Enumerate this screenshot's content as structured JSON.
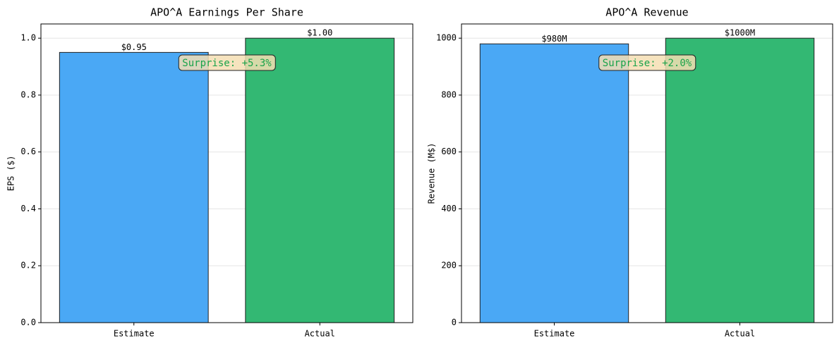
{
  "chart_data": [
    {
      "type": "bar",
      "title": "APO^A Earnings Per Share",
      "ylabel": "EPS ($)",
      "categories": [
        "Estimate",
        "Actual"
      ],
      "values": [
        0.95,
        1.0
      ],
      "value_labels": [
        "$0.95",
        "$1.00"
      ],
      "colors": [
        "#4aa8f5",
        "#33b873"
      ],
      "ylim": [
        0,
        1.05
      ],
      "yticks": [
        {
          "value": 0,
          "label": "0.0"
        },
        0.2,
        0.4,
        0.6,
        0.8,
        {
          "value": 1,
          "label": "1.0"
        }
      ],
      "grid": true,
      "annotation": "Surprise: +5.3%"
    },
    {
      "type": "bar",
      "title": "APO^A Revenue",
      "ylabel": "Revenue (M$)",
      "categories": [
        "Estimate",
        "Actual"
      ],
      "values": [
        980,
        1000
      ],
      "value_labels": [
        "$980M",
        "$1000M"
      ],
      "colors": [
        "#4aa8f5",
        "#33b873"
      ],
      "ylim": [
        0,
        1050
      ],
      "yticks": [
        0,
        200,
        400,
        600,
        800,
        1000
      ],
      "grid": true,
      "annotation": "Surprise: +2.0%"
    }
  ]
}
